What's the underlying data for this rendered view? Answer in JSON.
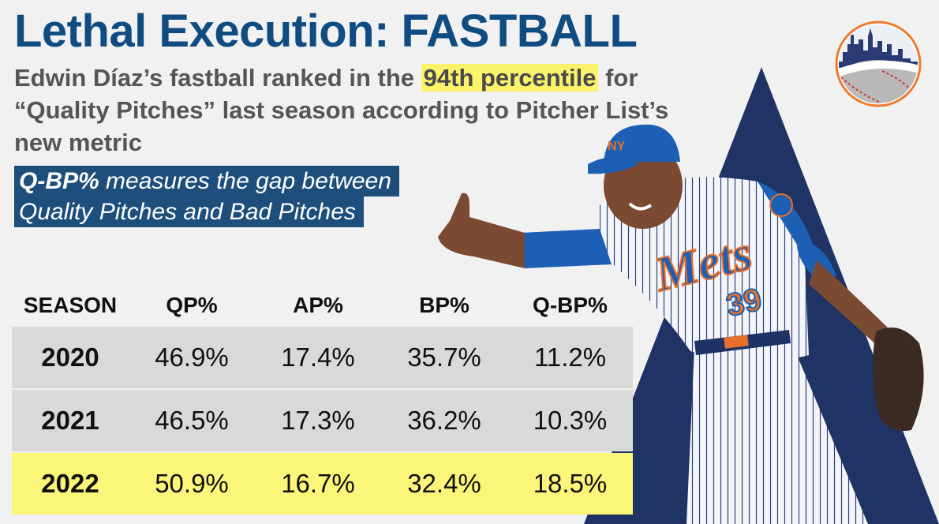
{
  "title": "Lethal Execution: FASTBALL",
  "subtitle": {
    "before": "Edwin Díaz’s fastball ranked in the ",
    "highlight": "94th percentile",
    "after": " for “Quality Pitches” last season according to Pitcher List’s new metric"
  },
  "callout": {
    "term": "Q-BP%",
    "line1_rest": " measures the gap between",
    "line2": "Quality Pitches and Bad Pitches"
  },
  "table": {
    "headers": [
      "SEASON",
      "QP%",
      "AP%",
      "BP%",
      "Q-BP%"
    ],
    "rows": [
      {
        "season": "2020",
        "qp": "46.9%",
        "ap": "17.4%",
        "bp": "35.7%",
        "qbp": "11.2%"
      },
      {
        "season": "2021",
        "qp": "46.5%",
        "ap": "17.3%",
        "bp": "36.2%",
        "qbp": "10.3%"
      },
      {
        "season": "2022",
        "qp": "50.9%",
        "ap": "16.7%",
        "bp": "32.4%",
        "qbp": "18.5%"
      }
    ]
  },
  "player": {
    "jersey_text": "Mets",
    "number": "39"
  },
  "colors": {
    "title": "#0f4c81",
    "callout_bg": "#1e4f7c",
    "highlight": "#fbf67a",
    "triangle": "#1f3364",
    "row_bg": "#d9d9d9"
  }
}
